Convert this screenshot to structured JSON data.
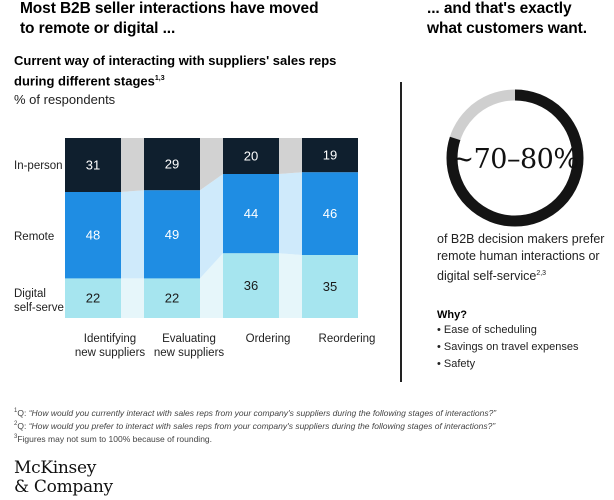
{
  "headline_left": [
    "Most B2B seller interactions have moved",
    "to remote or digital ..."
  ],
  "headline_right": [
    "... and that's exactly",
    "what customers want."
  ],
  "subtitle": [
    "Current way of interacting with suppliers' sales reps",
    "during different stages"
  ],
  "subtitle_sup": "1,3",
  "unit_label": "% of respondents",
  "row_labels": [
    "In-person",
    "Remote",
    "Digital",
    "self-serve"
  ],
  "colors": {
    "in_person": "#0f1f2e",
    "remote": "#1f8de3",
    "digital": "#a6e5ef",
    "in_person_band": "#d2d2d2",
    "remote_band": "#cfeafb",
    "digital_band": "#e6f6fa",
    "ring": "#141414",
    "ring_gap": "#cfcfcf",
    "value_light": "#ffffff",
    "value_dark": "#1a1a1a"
  },
  "chart_data": {
    "type": "bar",
    "stacked": true,
    "title": "Current way of interacting with suppliers' sales reps during different stages",
    "ylabel": "% of respondents",
    "ylim": [
      0,
      100
    ],
    "grid": false,
    "categories": [
      [
        "Identifying",
        "new suppliers"
      ],
      [
        "Evaluating",
        "new suppliers"
      ],
      [
        "Ordering"
      ],
      [
        "Reordering"
      ]
    ],
    "series": [
      {
        "name": "Digital self-serve",
        "key": "digital",
        "values": [
          22,
          22,
          36,
          35
        ]
      },
      {
        "name": "Remote",
        "key": "remote",
        "values": [
          48,
          49,
          44,
          46
        ]
      },
      {
        "name": "In-person",
        "key": "in_person",
        "values": [
          31,
          29,
          20,
          19
        ]
      }
    ]
  },
  "ring": {
    "label": "~70–80%",
    "value_low": 70,
    "value_high": 80
  },
  "claim": [
    "of B2B decision makers prefer",
    "remote human interactions or",
    "digital self-service"
  ],
  "claim_sup": "2,3",
  "why": {
    "title": "Why?",
    "items": [
      "Ease of scheduling",
      "Savings on travel expenses",
      "Safety"
    ]
  },
  "footnotes": [
    {
      "num": "1",
      "prefix": "Q: ",
      "text": "“How would you currently interact with sales reps from your company's suppliers during the following stages of interactions?”"
    },
    {
      "num": "2",
      "prefix": "Q: ",
      "text": "“How would you prefer to interact with sales reps from your company's suppliers during the following stages of interactions?”"
    },
    {
      "num": "3",
      "prefix": "",
      "text": "Figures may not sum to 100% because of rounding."
    }
  ],
  "logo": [
    "McKinsey",
    "& Company"
  ]
}
